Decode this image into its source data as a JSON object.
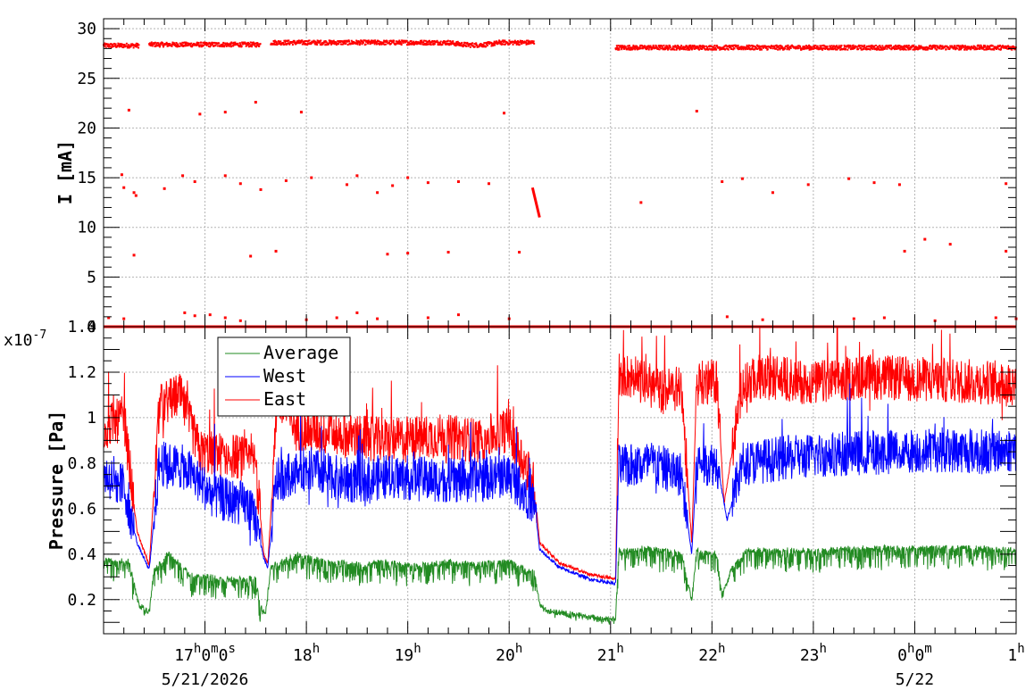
{
  "chart_data": [
    {
      "type": "scatter",
      "ylabel": "I [mA]",
      "ylim": [
        0,
        31
      ],
      "yticks": [
        0,
        5,
        10,
        15,
        20,
        25,
        30
      ],
      "grid": true,
      "x_unit": "hours since 16:00 on 5/21/2026",
      "xlim": [
        16.0,
        25.0
      ],
      "series": [
        {
          "color": "#ff0000",
          "main_current_segments": [
            {
              "x": [
                16.0,
                16.35
              ],
              "y": 28.3
            },
            {
              "x": [
                16.45,
                17.55
              ],
              "y": 28.4
            },
            {
              "x": [
                17.65,
                20.25
              ],
              "y": 28.6
            },
            {
              "x": [
                21.05,
                25.0
              ],
              "y": 28.1
            }
          ],
          "zero_segments": [
            {
              "x": [
                16.0,
                21.05
              ],
              "y": 0.0
            },
            {
              "x": [
                21.05,
                25.0
              ],
              "y": 0.0
            }
          ],
          "scattered_points": [
            [
              16.2,
              14.0
            ],
            [
              16.18,
              15.3
            ],
            [
              16.3,
              13.5
            ],
            [
              16.32,
              13.2
            ],
            [
              16.6,
              13.9
            ],
            [
              16.78,
              15.2
            ],
            [
              16.9,
              14.6
            ],
            [
              17.2,
              15.2
            ],
            [
              17.35,
              14.4
            ],
            [
              17.55,
              13.8
            ],
            [
              17.8,
              14.7
            ],
            [
              18.05,
              15.0
            ],
            [
              18.4,
              14.3
            ],
            [
              18.5,
              15.2
            ],
            [
              18.7,
              13.5
            ],
            [
              18.85,
              14.2
            ],
            [
              19.0,
              15.0
            ],
            [
              19.2,
              14.5
            ],
            [
              19.5,
              14.6
            ],
            [
              19.8,
              14.4
            ],
            [
              21.3,
              12.5
            ],
            [
              22.1,
              14.6
            ],
            [
              22.3,
              14.9
            ],
            [
              22.6,
              13.5
            ],
            [
              22.95,
              14.3
            ],
            [
              23.35,
              14.9
            ],
            [
              23.6,
              14.5
            ],
            [
              23.85,
              14.3
            ],
            [
              24.9,
              14.4
            ],
            [
              16.25,
              21.8
            ],
            [
              16.95,
              21.4
            ],
            [
              17.2,
              21.6
            ],
            [
              17.5,
              22.6
            ],
            [
              17.95,
              21.6
            ],
            [
              19.95,
              21.5
            ],
            [
              21.85,
              21.7
            ],
            [
              16.3,
              7.2
            ],
            [
              17.45,
              7.1
            ],
            [
              17.7,
              7.6
            ],
            [
              18.8,
              7.3
            ],
            [
              19.0,
              7.4
            ],
            [
              19.4,
              7.5
            ],
            [
              20.1,
              7.5
            ],
            [
              23.9,
              7.6
            ],
            [
              24.1,
              8.8
            ],
            [
              24.35,
              8.3
            ],
            [
              24.9,
              7.6
            ],
            [
              16.05,
              0.9
            ],
            [
              16.2,
              0.8
            ],
            [
              16.8,
              1.4
            ],
            [
              16.9,
              1.1
            ],
            [
              17.05,
              1.2
            ],
            [
              17.2,
              0.9
            ],
            [
              17.35,
              0.6
            ],
            [
              18.0,
              0.7
            ],
            [
              18.3,
              0.9
            ],
            [
              18.5,
              1.4
            ],
            [
              18.7,
              0.8
            ],
            [
              19.2,
              0.9
            ],
            [
              19.5,
              1.2
            ],
            [
              20.0,
              0.8
            ],
            [
              22.15,
              1.0
            ],
            [
              22.5,
              0.7
            ],
            [
              23.4,
              0.8
            ],
            [
              23.7,
              0.9
            ],
            [
              24.2,
              0.6
            ],
            [
              24.8,
              0.9
            ],
            [
              25.0,
              0.8
            ]
          ],
          "decay_segment": {
            "x": [
              20.23,
              20.3
            ],
            "y": [
              14.0,
              11.0
            ]
          }
        }
      ]
    },
    {
      "type": "line",
      "ylabel": "Pressure [Pa]",
      "y_exponent_label": "x10",
      "y_exponent_power": "-7",
      "ylim": [
        0.05,
        1.4
      ],
      "yticks": [
        0.2,
        0.4,
        0.6,
        0.8,
        1.0,
        1.2,
        1.4
      ],
      "ytick_labels": [
        "0.2",
        "0.4",
        "0.6",
        "0.8",
        "1",
        "1.2",
        "1.4"
      ],
      "grid": true,
      "x_unit": "hours since 16:00 on 5/21/2026",
      "xlim": [
        16.0,
        25.0
      ],
      "legend_position": "top-left",
      "series": [
        {
          "name": "Average",
          "color": "#228b22",
          "points": [
            [
              16.0,
              0.38
            ],
            [
              16.25,
              0.37
            ],
            [
              16.35,
              0.18
            ],
            [
              16.45,
              0.15
            ],
            [
              16.5,
              0.34
            ],
            [
              16.65,
              0.41
            ],
            [
              16.85,
              0.31
            ],
            [
              17.1,
              0.3
            ],
            [
              17.3,
              0.29
            ],
            [
              17.5,
              0.3
            ],
            [
              17.55,
              0.17
            ],
            [
              17.6,
              0.15
            ],
            [
              17.65,
              0.35
            ],
            [
              17.9,
              0.4
            ],
            [
              18.2,
              0.37
            ],
            [
              18.5,
              0.36
            ],
            [
              18.8,
              0.37
            ],
            [
              19.1,
              0.35
            ],
            [
              19.4,
              0.37
            ],
            [
              19.7,
              0.36
            ],
            [
              20.0,
              0.37
            ],
            [
              20.25,
              0.32
            ],
            [
              20.3,
              0.18
            ],
            [
              20.4,
              0.15
            ],
            [
              20.6,
              0.14
            ],
            [
              20.9,
              0.12
            ],
            [
              21.05,
              0.12
            ],
            [
              21.08,
              0.42
            ],
            [
              21.3,
              0.43
            ],
            [
              21.7,
              0.41
            ],
            [
              21.8,
              0.2
            ],
            [
              21.85,
              0.42
            ],
            [
              22.05,
              0.4
            ],
            [
              22.1,
              0.22
            ],
            [
              22.2,
              0.35
            ],
            [
              22.35,
              0.42
            ],
            [
              22.7,
              0.42
            ],
            [
              23.0,
              0.42
            ],
            [
              23.5,
              0.43
            ],
            [
              24.0,
              0.43
            ],
            [
              24.5,
              0.43
            ],
            [
              25.0,
              0.42
            ]
          ],
          "noise_amplitude": 0.06
        },
        {
          "name": "West",
          "color": "#0000ff",
          "points": [
            [
              16.0,
              0.75
            ],
            [
              16.2,
              0.7
            ],
            [
              16.33,
              0.45
            ],
            [
              16.45,
              0.33
            ],
            [
              16.55,
              0.8
            ],
            [
              16.8,
              0.78
            ],
            [
              17.1,
              0.65
            ],
            [
              17.4,
              0.62
            ],
            [
              17.5,
              0.55
            ],
            [
              17.58,
              0.38
            ],
            [
              17.62,
              0.34
            ],
            [
              17.7,
              0.72
            ],
            [
              18.0,
              0.78
            ],
            [
              18.4,
              0.72
            ],
            [
              18.8,
              0.74
            ],
            [
              19.2,
              0.73
            ],
            [
              19.6,
              0.72
            ],
            [
              20.0,
              0.75
            ],
            [
              20.25,
              0.62
            ],
            [
              20.3,
              0.42
            ],
            [
              20.5,
              0.34
            ],
            [
              20.8,
              0.29
            ],
            [
              21.05,
              0.27
            ],
            [
              21.08,
              0.78
            ],
            [
              21.4,
              0.8
            ],
            [
              21.7,
              0.75
            ],
            [
              21.8,
              0.4
            ],
            [
              21.85,
              0.8
            ],
            [
              22.05,
              0.8
            ],
            [
              22.15,
              0.55
            ],
            [
              22.3,
              0.8
            ],
            [
              22.7,
              0.82
            ],
            [
              23.2,
              0.84
            ],
            [
              23.7,
              0.85
            ],
            [
              24.2,
              0.86
            ],
            [
              24.7,
              0.85
            ],
            [
              25.0,
              0.86
            ]
          ],
          "noise_amplitude": 0.2
        },
        {
          "name": "East",
          "color": "#ff0000",
          "points": [
            [
              16.0,
              0.95
            ],
            [
              16.2,
              1.0
            ],
            [
              16.33,
              0.5
            ],
            [
              16.45,
              0.35
            ],
            [
              16.55,
              1.05
            ],
            [
              16.75,
              1.1
            ],
            [
              16.95,
              0.85
            ],
            [
              17.3,
              0.83
            ],
            [
              17.5,
              0.8
            ],
            [
              17.58,
              0.4
            ],
            [
              17.62,
              0.36
            ],
            [
              17.72,
              1.1
            ],
            [
              17.9,
              0.95
            ],
            [
              18.4,
              0.92
            ],
            [
              18.8,
              0.9
            ],
            [
              19.3,
              0.92
            ],
            [
              19.7,
              0.9
            ],
            [
              20.0,
              0.95
            ],
            [
              20.25,
              0.7
            ],
            [
              20.3,
              0.45
            ],
            [
              20.5,
              0.36
            ],
            [
              20.8,
              0.31
            ],
            [
              21.05,
              0.29
            ],
            [
              21.08,
              1.2
            ],
            [
              21.3,
              1.16
            ],
            [
              21.5,
              1.12
            ],
            [
              21.7,
              1.13
            ],
            [
              21.8,
              0.45
            ],
            [
              21.85,
              1.15
            ],
            [
              22.05,
              1.16
            ],
            [
              22.12,
              0.62
            ],
            [
              22.3,
              1.15
            ],
            [
              22.6,
              1.18
            ],
            [
              23.0,
              1.15
            ],
            [
              23.5,
              1.18
            ],
            [
              24.0,
              1.17
            ],
            [
              24.5,
              1.16
            ],
            [
              25.0,
              1.15
            ]
          ],
          "noise_amplitude": 0.2
        }
      ]
    }
  ],
  "x_axis": {
    "ticks": [
      {
        "x": 17.0,
        "base": "17",
        "parts": [
          [
            "h",
            "0"
          ],
          [
            "m",
            "0"
          ],
          [
            "s",
            ""
          ]
        ],
        "label_text": "17h0m0s"
      },
      {
        "x": 18.0,
        "base": "18",
        "parts": [
          [
            "h",
            ""
          ]
        ],
        "label_text": "18h"
      },
      {
        "x": 19.0,
        "base": "19",
        "parts": [
          [
            "h",
            ""
          ]
        ],
        "label_text": "19h"
      },
      {
        "x": 20.0,
        "base": "20",
        "parts": [
          [
            "h",
            ""
          ]
        ],
        "label_text": "20h"
      },
      {
        "x": 21.0,
        "base": "21",
        "parts": [
          [
            "h",
            ""
          ]
        ],
        "label_text": "21h"
      },
      {
        "x": 22.0,
        "base": "22",
        "parts": [
          [
            "h",
            ""
          ]
        ],
        "label_text": "22h"
      },
      {
        "x": 23.0,
        "base": "23",
        "parts": [
          [
            "h",
            ""
          ]
        ],
        "label_text": "23h"
      },
      {
        "x": 24.0,
        "base": "0",
        "parts": [
          [
            "h",
            "0"
          ],
          [
            "m",
            ""
          ]
        ],
        "label_text": "0h0m"
      },
      {
        "x": 25.0,
        "base": "1",
        "parts": [
          [
            "h",
            ""
          ]
        ],
        "label_text": "1h"
      }
    ],
    "dates": [
      {
        "x": 17.0,
        "label": "5/21/2026"
      },
      {
        "x": 24.0,
        "label": "5/22"
      }
    ]
  }
}
